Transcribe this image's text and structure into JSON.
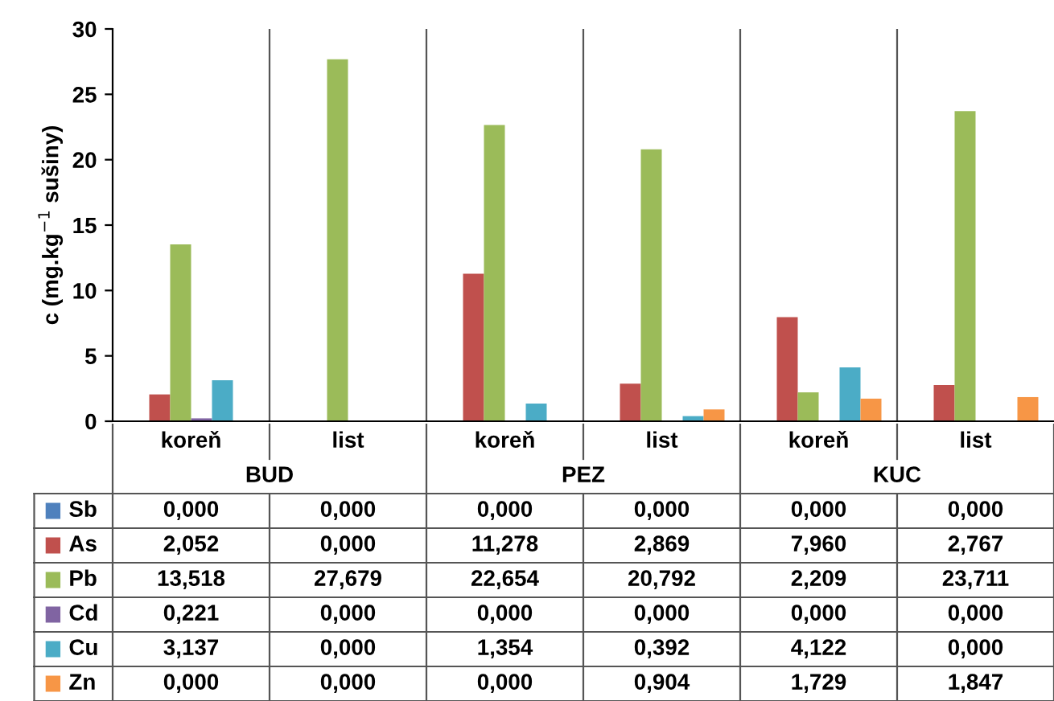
{
  "chart_data": {
    "type": "bar",
    "ylabel": "c (mg.kg$^{−1}$ sušiny)",
    "categories": [
      "koreň",
      "list",
      "koreň",
      "list",
      "koreň",
      "list"
    ],
    "annotations": [
      "BUD",
      "PEZ",
      "KUC"
    ],
    "ylim": [
      0,
      30
    ],
    "yticks": [
      0,
      5,
      10,
      15,
      20,
      25,
      30
    ],
    "grid": "x",
    "legend": "bottom",
    "series": [
      {
        "name": "Sb",
        "color": "#4f81bd",
        "values": [
          0,
          0,
          0,
          0,
          0,
          0
        ],
        "value_labels": [
          "0,000",
          "0,000",
          "0,000",
          "0,000",
          "0,000",
          "0,000"
        ]
      },
      {
        "name": "As",
        "color": "#c0504d",
        "values": [
          2.052,
          0,
          11.278,
          2.869,
          7.96,
          2.767
        ],
        "value_labels": [
          "2,052",
          "0,000",
          "11,278",
          "2,869",
          "7,960",
          "2,767"
        ]
      },
      {
        "name": "Pb",
        "color": "#9bbb59",
        "values": [
          13.518,
          27.679,
          22.654,
          20.792,
          2.209,
          23.711
        ],
        "value_labels": [
          "13,518",
          "27,679",
          "22,654",
          "20,792",
          "2,209",
          "23,711"
        ]
      },
      {
        "name": "Cd",
        "color": "#8064a2",
        "values": [
          0.221,
          0,
          0,
          0,
          0,
          0
        ],
        "value_labels": [
          "0,221",
          "0,000",
          "0,000",
          "0,000",
          "0,000",
          "0,000"
        ]
      },
      {
        "name": "Cu",
        "color": "#4bacc6",
        "values": [
          3.137,
          0,
          1.354,
          0.392,
          4.122,
          0
        ],
        "value_labels": [
          "3,137",
          "0,000",
          "1,354",
          "0,392",
          "4,122",
          "0,000"
        ]
      },
      {
        "name": "Zn",
        "color": "#f79646",
        "values": [
          0,
          0,
          0,
          0.904,
          1.729,
          1.847
        ],
        "value_labels": [
          "0,000",
          "0,000",
          "0,000",
          "0,904",
          "1,729",
          "1,847"
        ]
      }
    ]
  }
}
